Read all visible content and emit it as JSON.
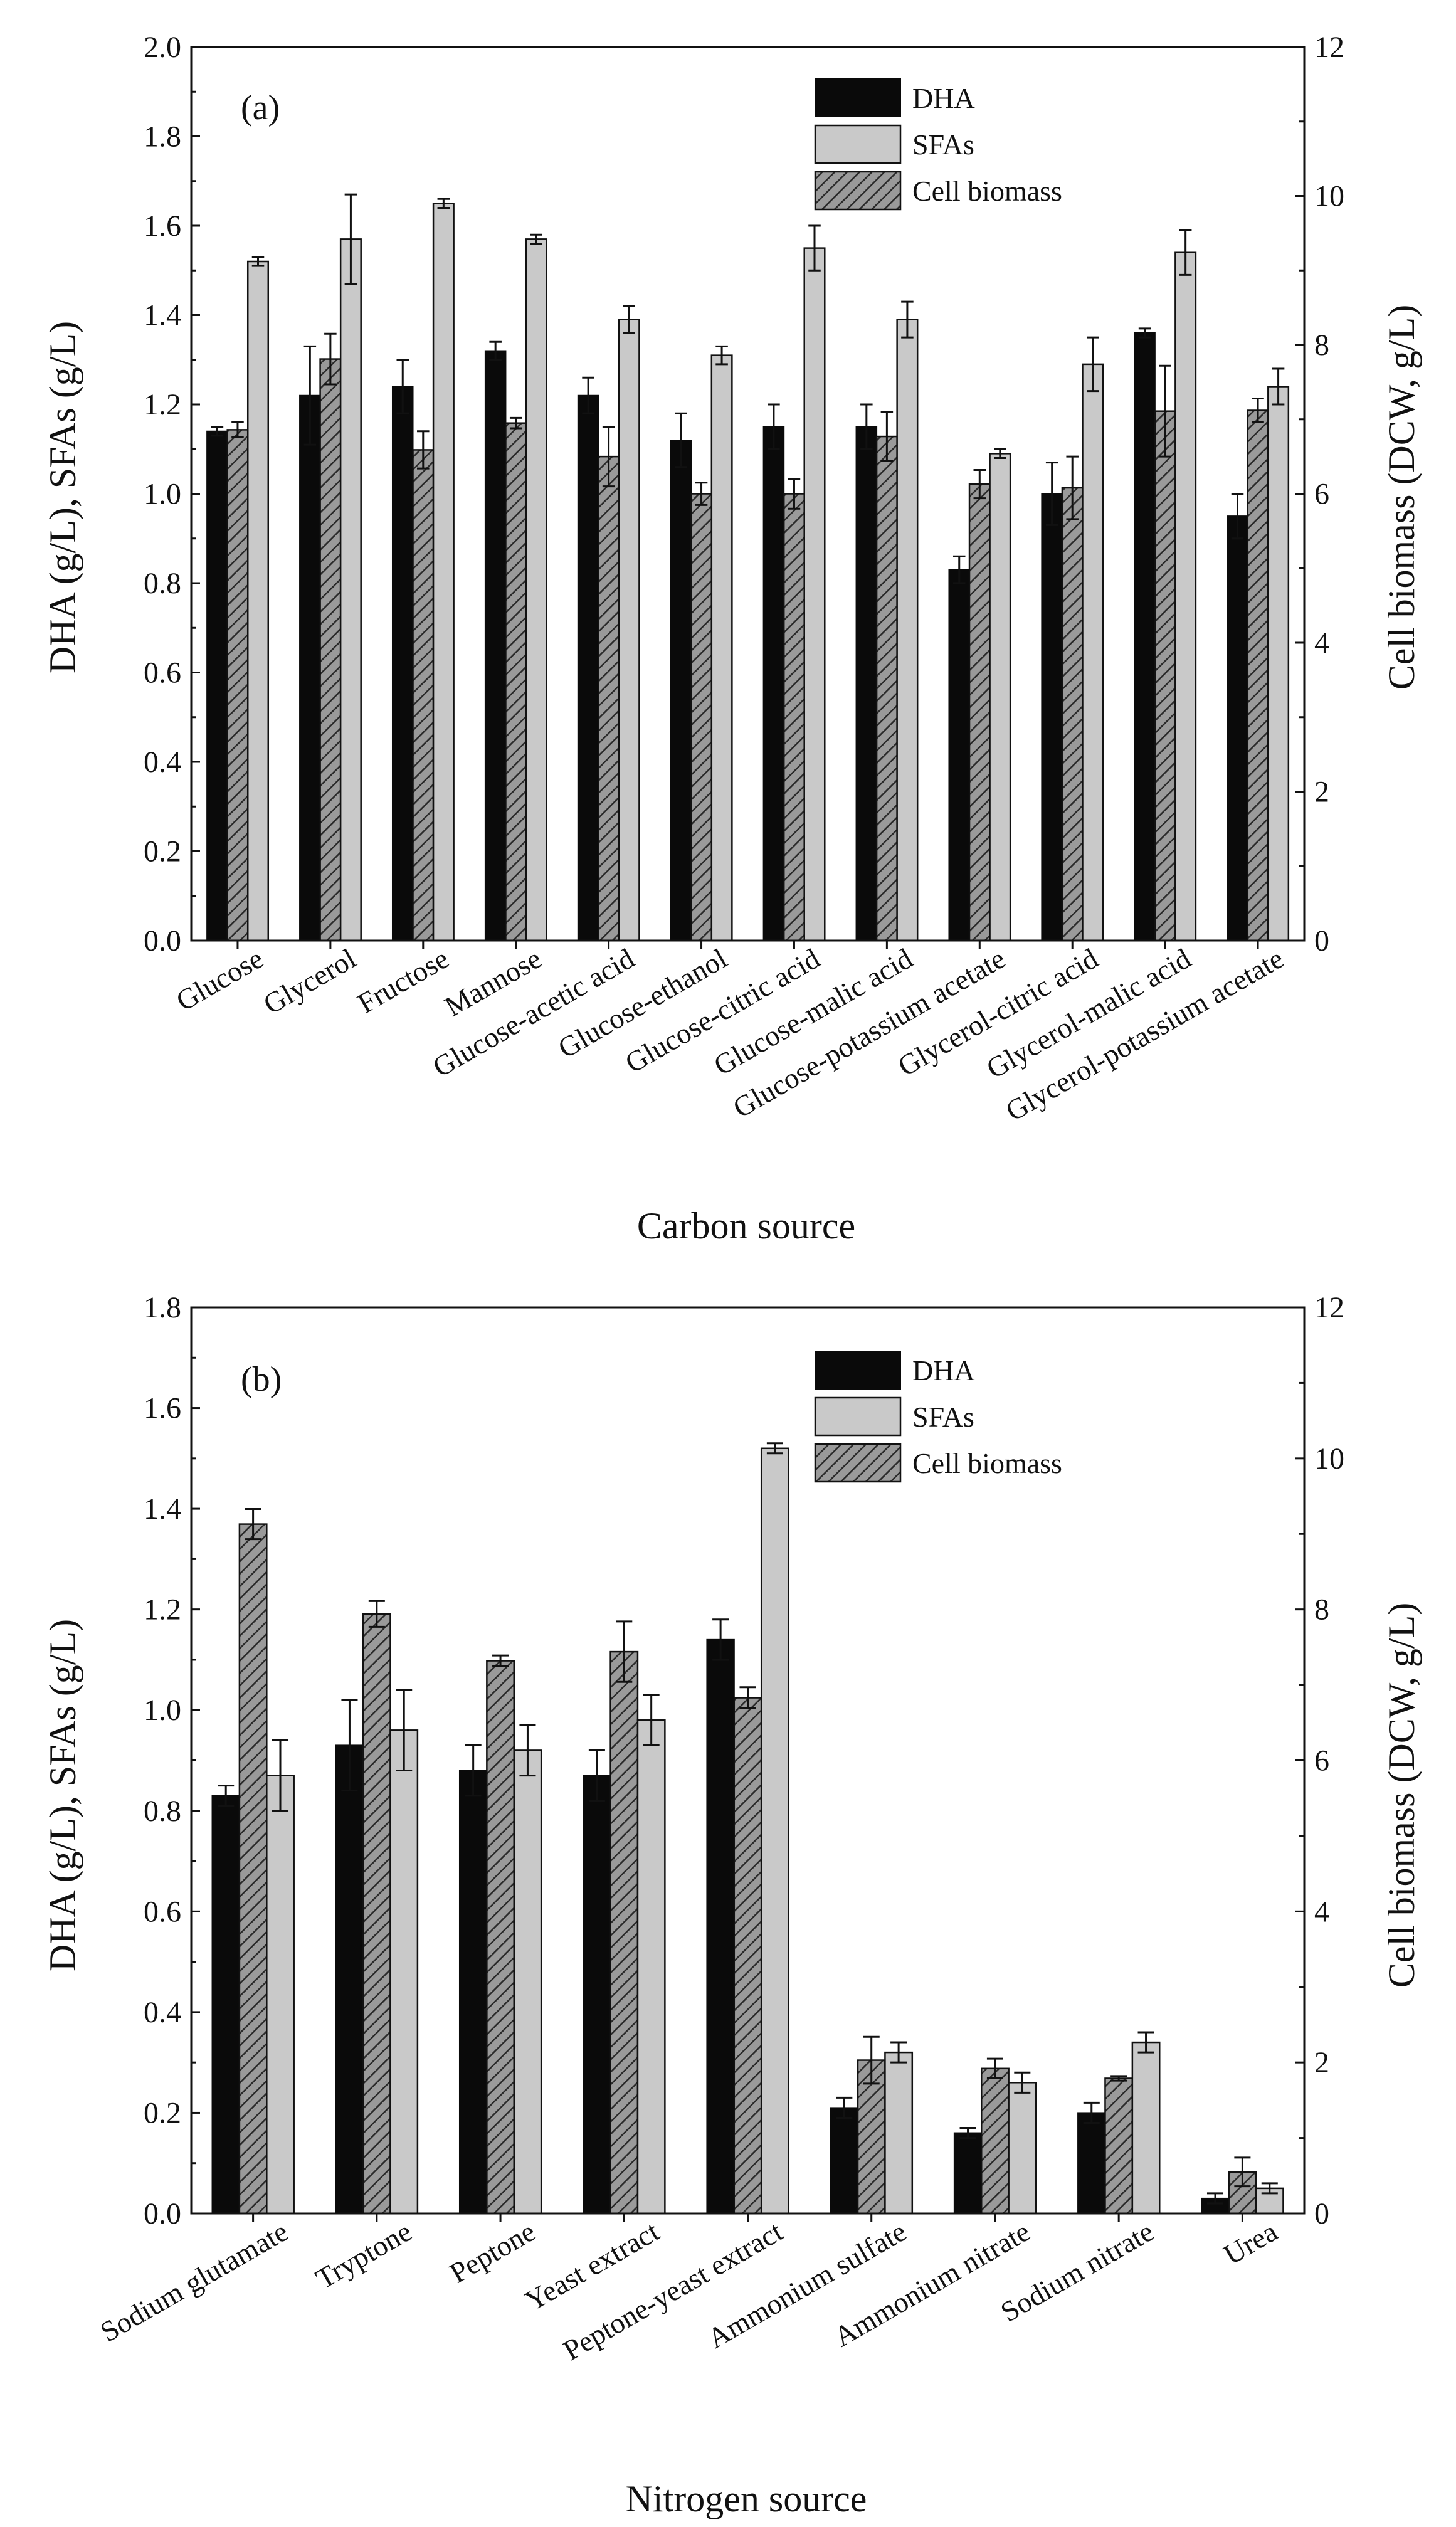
{
  "chart_data": [
    {
      "type": "bar",
      "panel_label": "(a)",
      "xlabel": "Carbon source",
      "ylabel_left": "DHA (g/L), SFAs (g/L)",
      "ylabel_right": "Cell biomass (DCW, g/L)",
      "ylim_left": [
        0,
        2.0
      ],
      "yticks_left": [
        "0.0",
        "0.2",
        "0.4",
        "0.6",
        "0.8",
        "1.0",
        "1.2",
        "1.4",
        "1.6",
        "1.8",
        "2.0"
      ],
      "ylim_right": [
        0,
        12
      ],
      "yticks_right": [
        "0",
        "2",
        "4",
        "6",
        "8",
        "10",
        "12"
      ],
      "legend": [
        "DHA",
        "SFAs",
        "Cell biomass"
      ],
      "categories": [
        "Glucose",
        "Glycerol",
        "Fructose",
        "Mannose",
        "Glucose-acetic acid",
        "Glucose-ethanol",
        "Glucose-citric acid",
        "Glucose-malic acid",
        "Glucose-potassium acetate",
        "Glycerol-citric acid",
        "Glycerol-malic acid",
        "Glycerol-potassium acetate"
      ],
      "series": [
        {
          "name": "DHA",
          "axis": "left",
          "values": [
            1.14,
            1.22,
            1.24,
            1.32,
            1.22,
            1.12,
            1.15,
            1.15,
            0.83,
            1.0,
            1.36,
            0.95
          ],
          "errors": [
            0.01,
            0.11,
            0.06,
            0.02,
            0.04,
            0.06,
            0.05,
            0.05,
            0.03,
            0.07,
            0.01,
            0.05
          ]
        },
        {
          "name": "Cell biomass",
          "axis": "right",
          "values": [
            6.86,
            7.81,
            6.59,
            6.95,
            6.5,
            6.0,
            6.0,
            6.77,
            6.13,
            6.08,
            7.11,
            7.12
          ],
          "errors": [
            0.1,
            0.34,
            0.25,
            0.07,
            0.4,
            0.15,
            0.2,
            0.33,
            0.19,
            0.42,
            0.61,
            0.16
          ]
        },
        {
          "name": "SFAs",
          "axis": "left",
          "values": [
            1.52,
            1.57,
            1.65,
            1.57,
            1.39,
            1.31,
            1.55,
            1.39,
            1.09,
            1.29,
            1.54,
            1.24
          ],
          "errors": [
            0.01,
            0.1,
            0.01,
            0.01,
            0.03,
            0.02,
            0.05,
            0.04,
            0.01,
            0.06,
            0.05,
            0.04
          ]
        }
      ]
    },
    {
      "type": "bar",
      "panel_label": "(b)",
      "xlabel": "Nitrogen source",
      "ylabel_left": "DHA (g/L), SFAs (g/L)",
      "ylabel_right": "Cell biomass (DCW, g/L)",
      "ylim_left": [
        0,
        1.8
      ],
      "yticks_left": [
        "0.0",
        "0.2",
        "0.4",
        "0.6",
        "0.8",
        "1.0",
        "1.2",
        "1.4",
        "1.6",
        "1.8"
      ],
      "ylim_right": [
        0,
        12
      ],
      "yticks_right": [
        "0",
        "2",
        "4",
        "6",
        "8",
        "10",
        "12"
      ],
      "legend": [
        "DHA",
        "SFAs",
        "Cell biomass"
      ],
      "categories": [
        "Sodium glutamate",
        "Tryptone",
        "Peptone",
        "Yeast extract",
        "Peptone-yeast extract",
        "Ammonium sulfate",
        "Ammonium nitrate",
        "Sodium nitrate",
        "Urea"
      ],
      "series": [
        {
          "name": "DHA",
          "axis": "left",
          "values": [
            0.83,
            0.93,
            0.88,
            0.87,
            1.14,
            0.21,
            0.16,
            0.2,
            0.03
          ],
          "errors": [
            0.02,
            0.09,
            0.05,
            0.05,
            0.04,
            0.02,
            0.01,
            0.02,
            0.01
          ]
        },
        {
          "name": "Cell biomass",
          "axis": "right",
          "values": [
            9.13,
            7.94,
            7.32,
            7.44,
            6.83,
            2.03,
            1.92,
            1.79,
            0.55
          ],
          "errors": [
            0.2,
            0.17,
            0.07,
            0.4,
            0.14,
            0.31,
            0.13,
            0.03,
            0.19
          ]
        },
        {
          "name": "SFAs",
          "axis": "left",
          "values": [
            0.87,
            0.96,
            0.92,
            0.98,
            1.52,
            0.32,
            0.26,
            0.34,
            0.05
          ],
          "errors": [
            0.07,
            0.08,
            0.05,
            0.05,
            0.01,
            0.02,
            0.02,
            0.02,
            0.01
          ]
        }
      ]
    }
  ]
}
